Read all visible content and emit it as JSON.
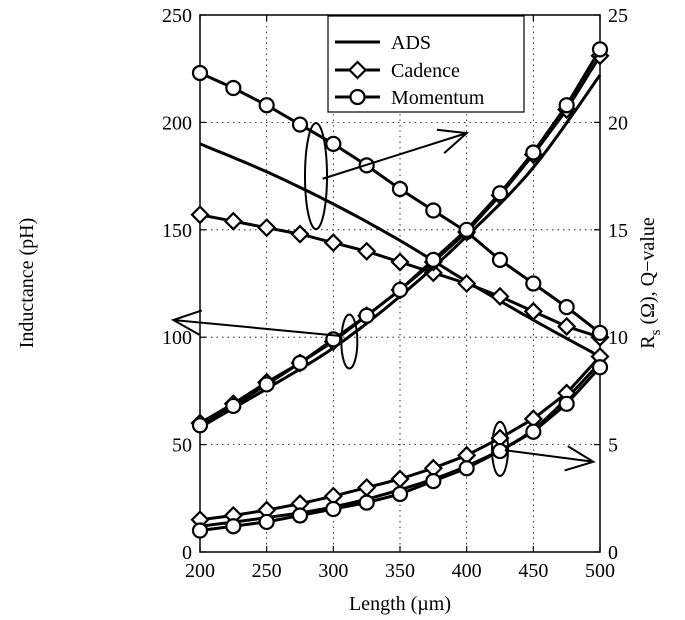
{
  "chart_data": {
    "type": "line",
    "title": "",
    "xlabel": "Length (µm)",
    "ylabel_left": "Inductance (pH)",
    "ylabel_right_main": "R",
    "ylabel_right_sub": "s",
    "ylabel_right_rest": " (Ω),   Q−value",
    "xlim": [
      200,
      500
    ],
    "ylim_left": [
      0,
      250
    ],
    "ylim_right": [
      0,
      25
    ],
    "x_ticks": [
      200,
      250,
      300,
      350,
      400,
      450,
      500
    ],
    "y_left_ticks": [
      0,
      50,
      100,
      150,
      200,
      250
    ],
    "y_right_ticks": [
      0,
      5,
      10,
      15,
      20,
      25
    ],
    "grid": true,
    "legend_position": "top-right",
    "legend": [
      {
        "name": "ADS",
        "marker": "none"
      },
      {
        "name": "Cadence",
        "marker": "diamond"
      },
      {
        "name": "Momentum",
        "marker": "circle"
      }
    ],
    "series": [
      {
        "group": "Inductance",
        "axis": "left",
        "tool": "ADS",
        "marker": "none",
        "x": [
          200,
          250,
          300,
          350,
          400,
          450,
          500
        ],
        "y": [
          190,
          177,
          162,
          145,
          126,
          108,
          91
        ]
      },
      {
        "group": "Inductance",
        "axis": "left",
        "tool": "Cadence",
        "marker": "diamond",
        "x": [
          200,
          225,
          250,
          275,
          300,
          325,
          350,
          375,
          400,
          425,
          450,
          475,
          500
        ],
        "y": [
          157,
          154,
          151,
          148,
          144,
          140,
          135,
          130,
          125,
          119,
          112,
          105,
          100
        ]
      },
      {
        "group": "Q-value",
        "axis": "right",
        "tool": "Momentum",
        "marker": "circle",
        "x": [
          200,
          225,
          250,
          275,
          300,
          325,
          350,
          375,
          400,
          425,
          450,
          475,
          500
        ],
        "y": [
          22.3,
          21.6,
          20.8,
          19.9,
          19.0,
          18.0,
          16.9,
          15.9,
          14.9,
          13.6,
          12.5,
          11.4,
          10.2
        ]
      },
      {
        "group": "Q-value",
        "axis": "right",
        "tool": "ADS",
        "marker": "none",
        "x": [
          200,
          250,
          300,
          350,
          400,
          450,
          500
        ],
        "y": [
          5.8,
          7.6,
          9.5,
          11.9,
          14.7,
          17.9,
          22.2
        ]
      },
      {
        "group": "Q-value",
        "axis": "right",
        "tool": "Cadence",
        "marker": "diamond",
        "x": [
          200,
          225,
          250,
          275,
          300,
          325,
          350,
          375,
          400,
          425,
          450,
          475,
          500
        ],
        "y": [
          6.0,
          6.9,
          7.9,
          8.8,
          9.8,
          11.0,
          12.2,
          13.5,
          14.9,
          16.6,
          18.5,
          20.6,
          23.1
        ]
      },
      {
        "group": "Q-value",
        "axis": "right",
        "tool": "Momentum",
        "marker": "circle",
        "x": [
          200,
          225,
          250,
          275,
          300,
          325,
          350,
          375,
          400,
          425,
          450,
          475,
          500
        ],
        "y": [
          5.9,
          6.8,
          7.8,
          8.8,
          9.9,
          11.0,
          12.2,
          13.6,
          15.0,
          16.7,
          18.6,
          20.8,
          23.4
        ]
      },
      {
        "group": "Rs",
        "axis": "right",
        "tool": "ADS",
        "marker": "none",
        "x": [
          200,
          250,
          300,
          350,
          400,
          450,
          500
        ],
        "y": [
          1.2,
          1.6,
          2.1,
          2.9,
          4.0,
          5.7,
          8.8
        ]
      },
      {
        "group": "Rs",
        "axis": "right",
        "tool": "Cadence",
        "marker": "diamond",
        "x": [
          200,
          225,
          250,
          275,
          300,
          325,
          350,
          375,
          400,
          425,
          450,
          475,
          500
        ],
        "y": [
          1.5,
          1.7,
          1.95,
          2.25,
          2.6,
          3.0,
          3.4,
          3.9,
          4.5,
          5.3,
          6.2,
          7.4,
          9.1
        ]
      },
      {
        "group": "Rs",
        "axis": "right",
        "tool": "Momentum",
        "marker": "circle",
        "x": [
          200,
          225,
          250,
          275,
          300,
          325,
          350,
          375,
          400,
          425,
          450,
          475,
          500
        ],
        "y": [
          1.0,
          1.2,
          1.4,
          1.7,
          2.0,
          2.3,
          2.7,
          3.3,
          3.9,
          4.7,
          5.6,
          6.9,
          8.6
        ]
      }
    ],
    "annotations": [
      {
        "kind": "ellipse-arrow",
        "target": "Q-value (Momentum)",
        "arrow": "right",
        "axis": "right",
        "ellipse_x": 287,
        "ellipse_y": 17.5,
        "arrow_to_x": 400,
        "arrow_to_y": 19.5
      },
      {
        "kind": "ellipse-arrow",
        "target": "Inductance",
        "arrow": "left",
        "axis": "left",
        "ellipse_x": 312,
        "ellipse_y": 98,
        "arrow_to_x": 180,
        "arrow_to_y": 108
      },
      {
        "kind": "ellipse-arrow",
        "target": "Rs",
        "arrow": "right",
        "axis": "right",
        "ellipse_x": 425,
        "ellipse_y": 4.8,
        "arrow_to_x": 495,
        "arrow_to_y": 4.2
      }
    ]
  }
}
